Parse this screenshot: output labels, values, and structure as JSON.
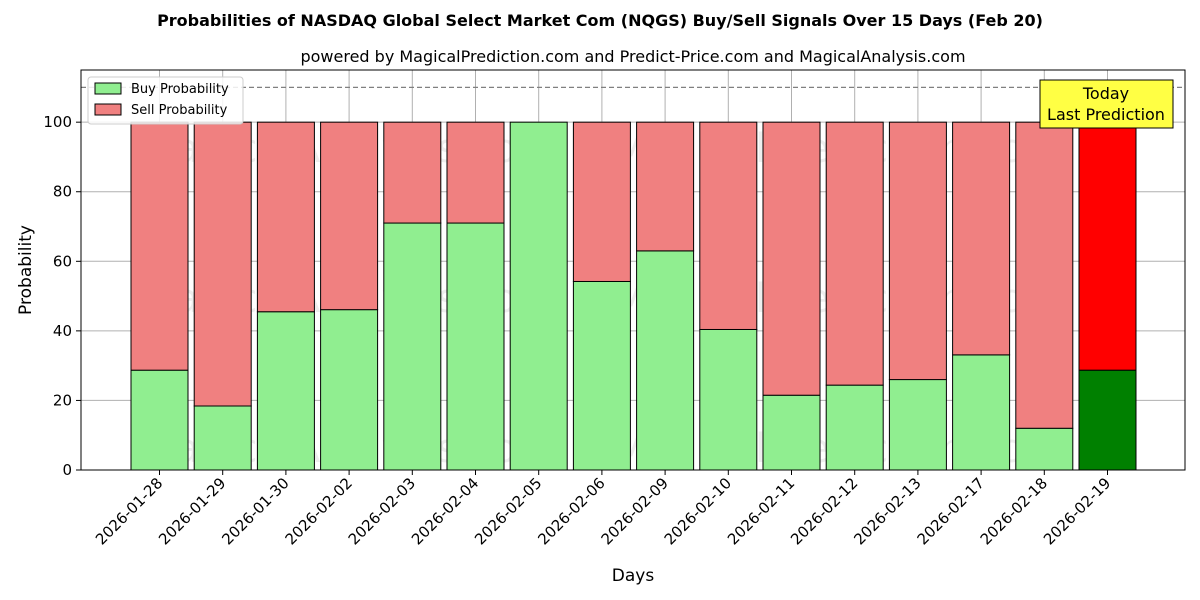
{
  "chart_data": {
    "type": "bar",
    "stacked": true,
    "title": "Probabilities of NASDAQ Global Select Market Com (NQGS) Buy/Sell Signals Over 15 Days (Feb 20)",
    "subtitle": "powered by MagicalPrediction.com and Predict-Price.com and MagicalAnalysis.com",
    "xlabel": "Days",
    "ylabel": "Probability",
    "ylim": [
      0,
      115
    ],
    "yticks": [
      0,
      20,
      40,
      60,
      80,
      100
    ],
    "reference_line": 110,
    "grid": true,
    "legend_position": "top-left",
    "categories": [
      "2026-01-28",
      "2026-01-29",
      "2026-01-30",
      "2026-02-02",
      "2026-02-03",
      "2026-02-04",
      "2026-02-05",
      "2026-02-06",
      "2026-02-09",
      "2026-02-10",
      "2026-02-11",
      "2026-02-12",
      "2026-02-13",
      "2026-02-17",
      "2026-02-18",
      "2026-02-19"
    ],
    "series": [
      {
        "name": "Buy Probability",
        "color": "#90ee90",
        "highlight_color": "#008000",
        "values": [
          28.7,
          18.4,
          45.5,
          46.1,
          71.0,
          71.0,
          100.0,
          54.2,
          63.0,
          40.4,
          21.5,
          24.4,
          26.0,
          33.1,
          12.0,
          28.7
        ]
      },
      {
        "name": "Sell Probability",
        "color": "#f08080",
        "highlight_color": "#ff0000",
        "values": [
          71.3,
          81.6,
          54.5,
          53.9,
          29.0,
          29.0,
          0.0,
          45.8,
          37.0,
          59.6,
          78.5,
          75.6,
          74.0,
          66.9,
          88.0,
          71.3
        ]
      }
    ],
    "annotation": {
      "lines": [
        "Today",
        "Last Prediction"
      ],
      "color": "#ffff44"
    },
    "watermarks": [
      "MagicalAnalysis.com",
      "MagicalPrediction.com"
    ]
  }
}
